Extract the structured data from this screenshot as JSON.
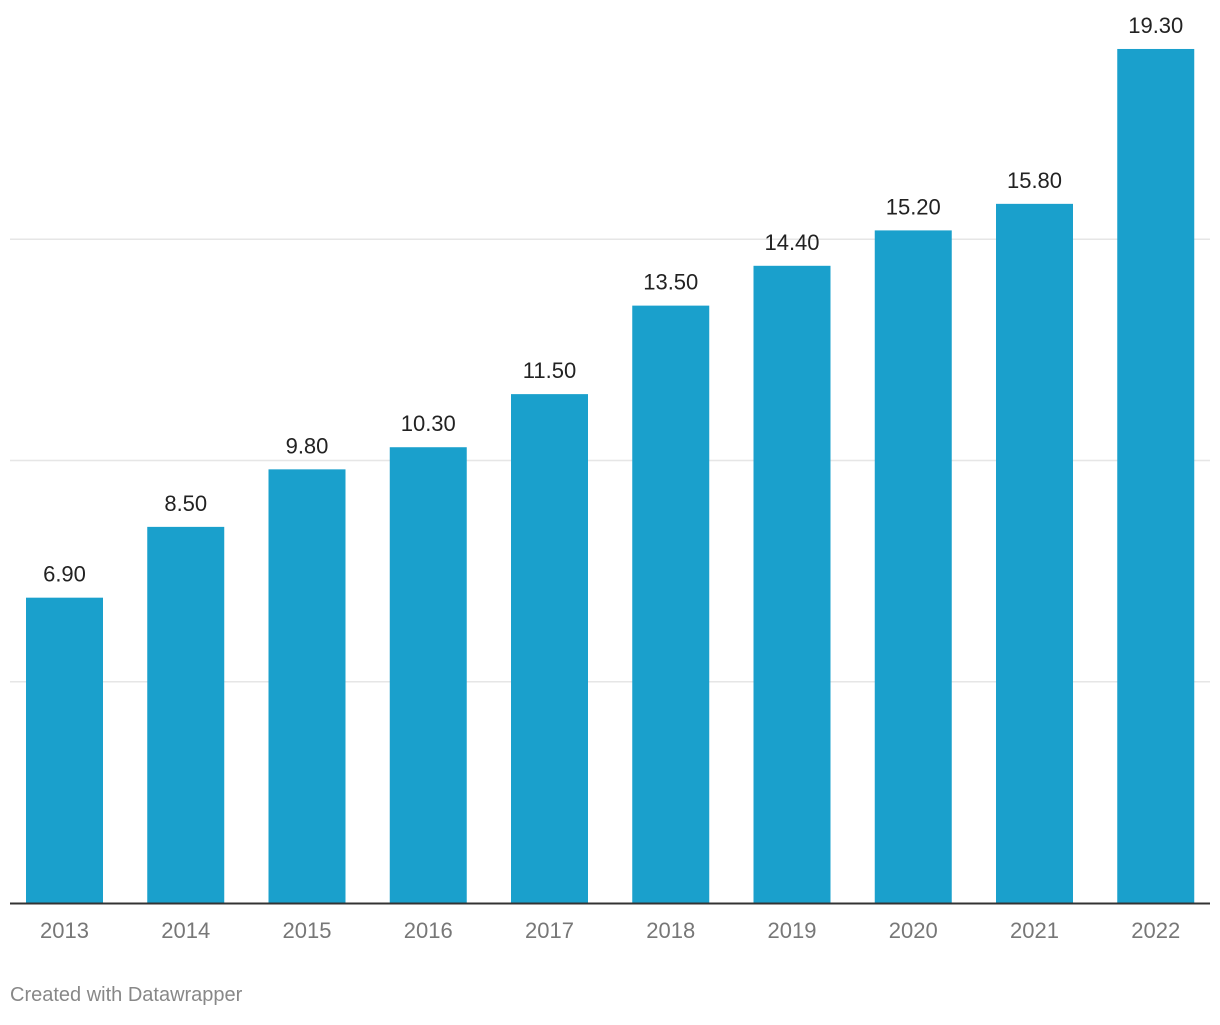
{
  "chart_data": {
    "type": "bar",
    "categories": [
      "2013",
      "2014",
      "2015",
      "2016",
      "2017",
      "2018",
      "2019",
      "2020",
      "2021",
      "2022"
    ],
    "values": [
      6.9,
      8.5,
      9.8,
      10.3,
      11.5,
      13.5,
      14.4,
      15.2,
      15.8,
      19.3
    ],
    "value_labels": [
      "6.90",
      "8.50",
      "9.80",
      "10.30",
      "11.50",
      "13.50",
      "14.40",
      "15.20",
      "15.80",
      "19.30"
    ],
    "title": "",
    "xlabel": "",
    "ylabel": "",
    "ylim": [
      0,
      20
    ],
    "gridlines": [
      5,
      10,
      15
    ],
    "grid": true,
    "legend": "none"
  },
  "colors": {
    "bar": "#1aa0cc",
    "grid": "#e6e6e6",
    "axis": "#333333",
    "value_label": "#222222",
    "tick_label": "#777777",
    "footer": "#888888"
  },
  "footer": {
    "credit": "Created with Datawrapper"
  }
}
